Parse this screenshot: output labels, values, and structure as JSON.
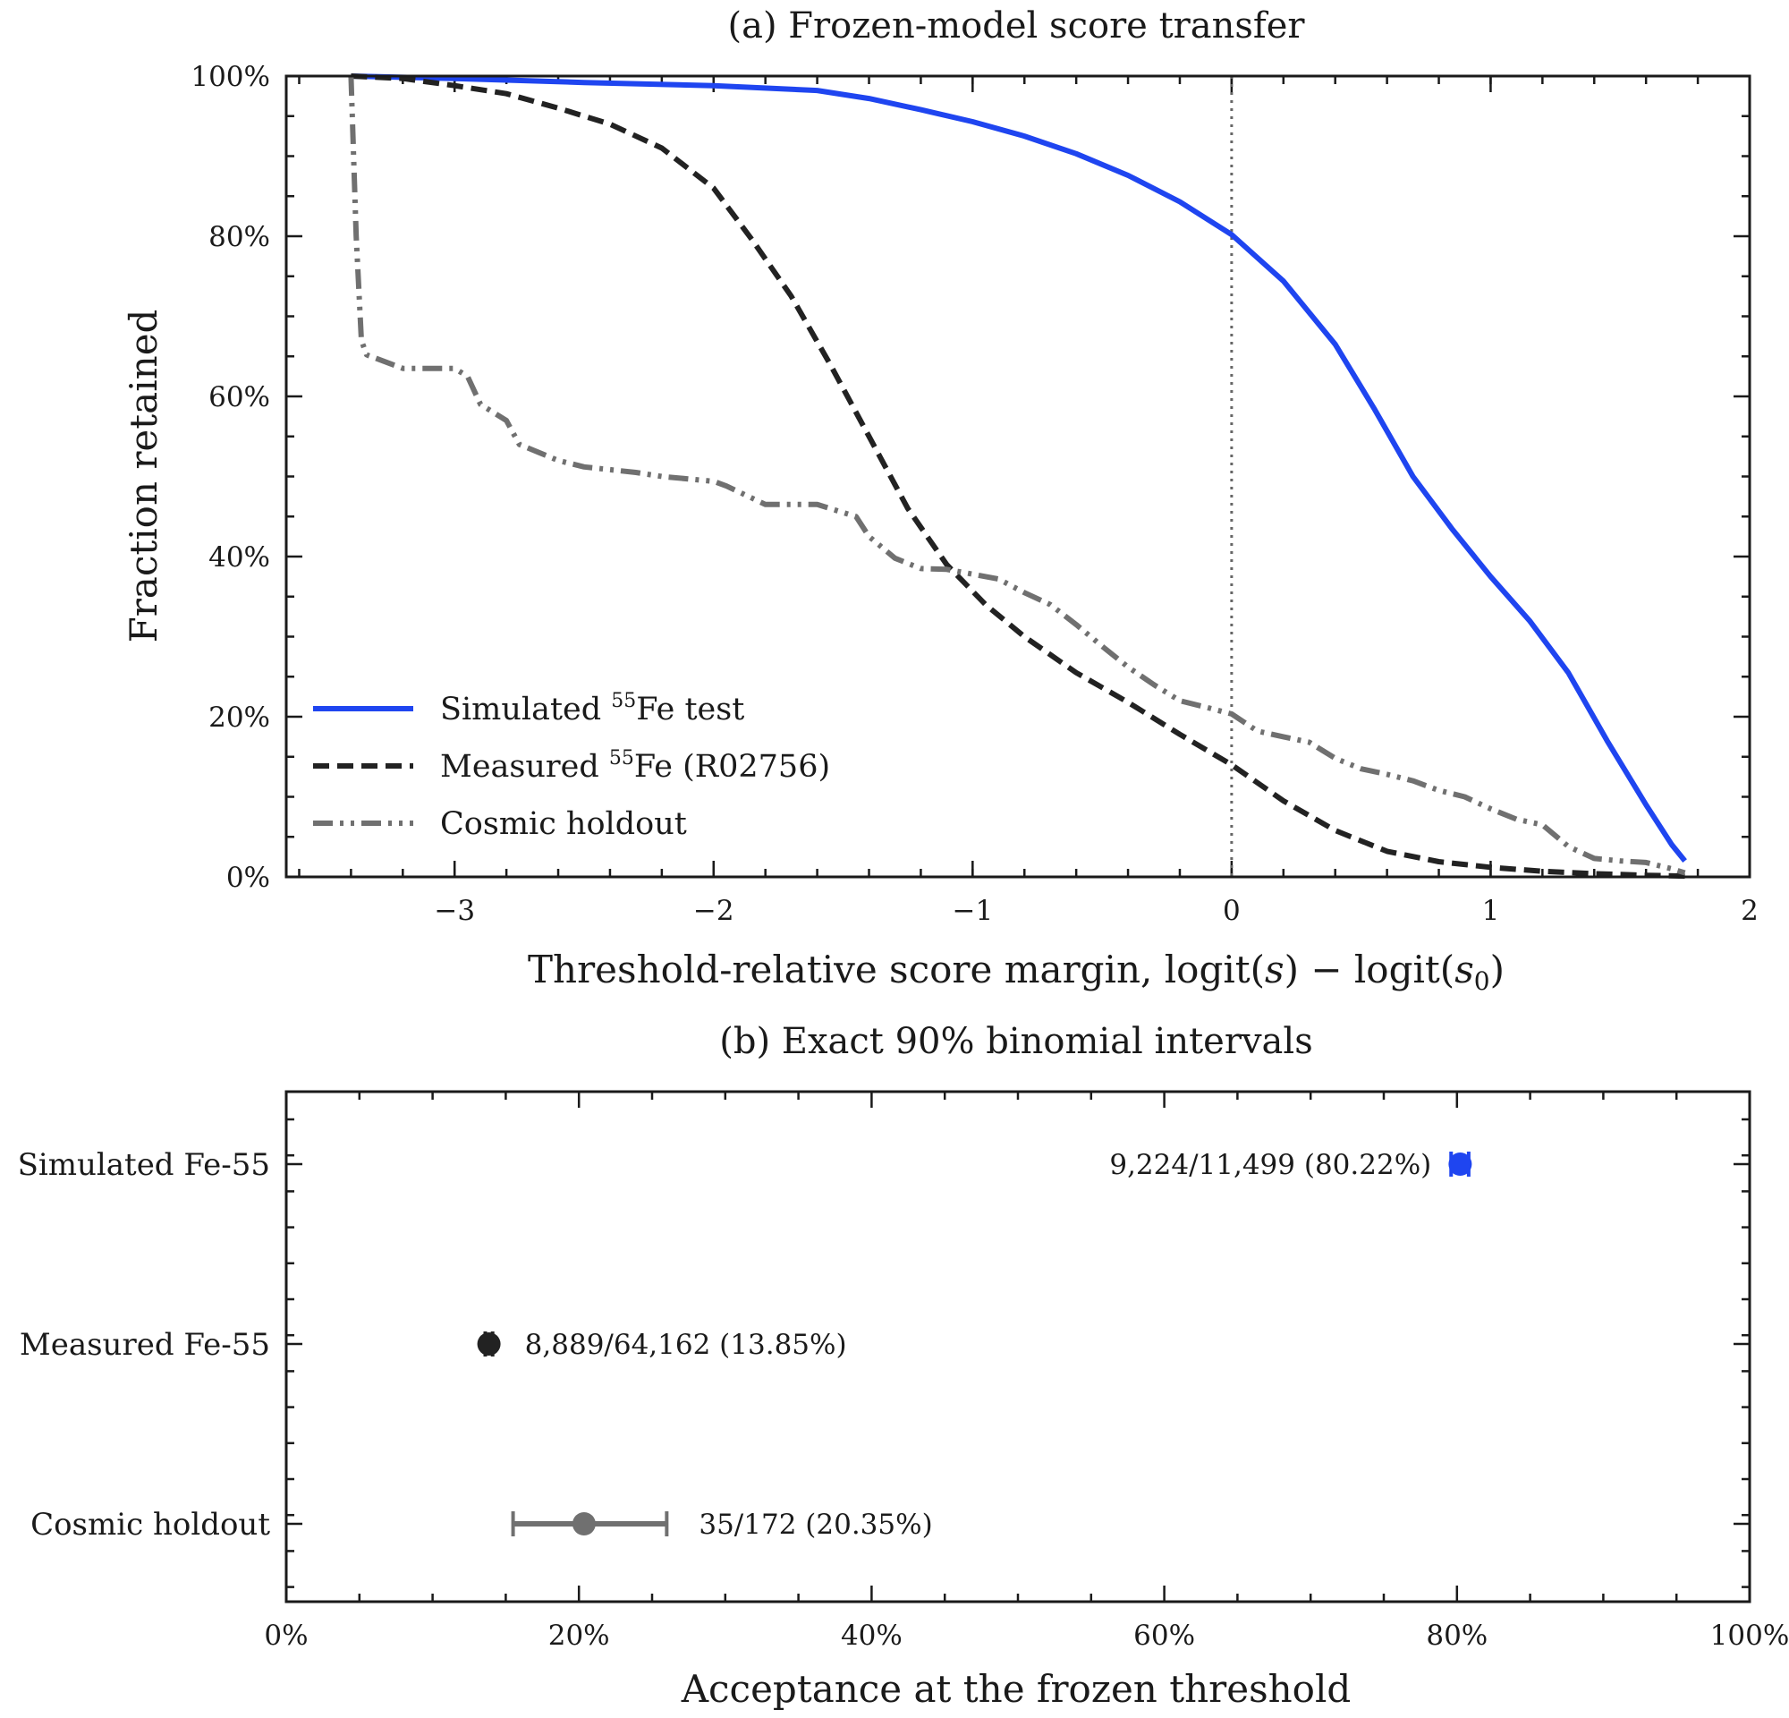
{
  "chart_data": [
    {
      "type": "line",
      "title": "(a) Frozen-model score transfer",
      "xlabel": "Threshold-relative score margin, logit(s) − logit(s₀)",
      "ylabel": "Fraction retained",
      "xlim": [
        -3.65,
        2.0
      ],
      "ylim": [
        0,
        100
      ],
      "x_ticks": [
        -3,
        -2,
        -1,
        0,
        1,
        2
      ],
      "x_tick_labels": [
        "−3",
        "−2",
        "−1",
        "0",
        "1",
        "2"
      ],
      "y_ticks": [
        0,
        20,
        40,
        60,
        80,
        100
      ],
      "y_tick_labels": [
        "0%",
        "20%",
        "40%",
        "60%",
        "80%",
        "100%"
      ],
      "reference_line": {
        "x": 0,
        "style": "dotted",
        "color": "#666666"
      },
      "legend": {
        "placement": "lower-left"
      },
      "series": [
        {
          "name": "Simulated ⁵⁵Fe test",
          "legend_parts": [
            "Simulated ",
            "55",
            "Fe test"
          ],
          "color": "#1f45f0",
          "style": "solid",
          "x": [
            -3.4,
            -3.0,
            -2.5,
            -2.0,
            -1.6,
            -1.4,
            -1.2,
            -1.0,
            -0.8,
            -0.6,
            -0.4,
            -0.2,
            0.0,
            0.2,
            0.4,
            0.55,
            0.7,
            0.85,
            1.0,
            1.15,
            1.3,
            1.45,
            1.6,
            1.7,
            1.75
          ],
          "y": [
            100,
            99.7,
            99.2,
            98.8,
            98.2,
            97.2,
            95.8,
            94.3,
            92.5,
            90.3,
            87.6,
            84.3,
            80.2,
            74.4,
            66.5,
            58.5,
            50.0,
            43.5,
            37.5,
            32.0,
            25.5,
            17.0,
            9.0,
            4.0,
            2.0
          ]
        },
        {
          "name": "Measured ⁵⁵Fe (R02756)",
          "legend_parts": [
            "Measured ",
            "55",
            "Fe (R02756)"
          ],
          "color": "#222222",
          "style": "dashed",
          "x": [
            -3.4,
            -3.2,
            -3.0,
            -2.8,
            -2.6,
            -2.4,
            -2.2,
            -2.0,
            -1.85,
            -1.7,
            -1.55,
            -1.4,
            -1.25,
            -1.1,
            -0.95,
            -0.8,
            -0.6,
            -0.4,
            -0.2,
            0.0,
            0.2,
            0.4,
            0.6,
            0.8,
            1.0,
            1.2,
            1.4,
            1.6,
            1.75
          ],
          "y": [
            100,
            99.7,
            98.8,
            97.8,
            96.0,
            94.0,
            91.0,
            86.0,
            79.5,
            72.5,
            64.0,
            55.0,
            46.0,
            39.0,
            34.0,
            30.0,
            25.5,
            21.8,
            17.8,
            14.0,
            9.5,
            5.8,
            3.2,
            1.9,
            1.2,
            0.7,
            0.4,
            0.2,
            0.1
          ]
        },
        {
          "name": "Cosmic holdout",
          "legend_parts": [
            "Cosmic holdout",
            "",
            ""
          ],
          "color": "#707070",
          "style": "dashdotdot",
          "x": [
            -3.4,
            -3.38,
            -3.36,
            -3.34,
            -3.2,
            -3.0,
            -2.95,
            -2.9,
            -2.8,
            -2.75,
            -2.6,
            -2.5,
            -2.3,
            -2.2,
            -2.0,
            -1.95,
            -1.8,
            -1.75,
            -1.6,
            -1.45,
            -1.4,
            -1.3,
            -1.2,
            -1.1,
            -0.9,
            -0.8,
            -0.7,
            -0.6,
            -0.5,
            -0.4,
            -0.3,
            -0.2,
            -0.1,
            0.0,
            0.1,
            0.2,
            0.3,
            0.4,
            0.5,
            0.6,
            0.7,
            0.8,
            0.9,
            1.0,
            1.1,
            1.2,
            1.3,
            1.4,
            1.5,
            1.6,
            1.7,
            1.75
          ],
          "y": [
            100,
            80,
            67,
            65.2,
            63.5,
            63.5,
            62.5,
            59.0,
            57.0,
            54.0,
            52.0,
            51.2,
            50.5,
            50.0,
            49.4,
            48.8,
            46.5,
            46.5,
            46.5,
            45.0,
            42.5,
            39.8,
            38.5,
            38.4,
            37.2,
            35.5,
            34.0,
            31.5,
            28.8,
            26.2,
            24.0,
            22.0,
            21.2,
            20.35,
            18.2,
            17.5,
            16.8,
            14.8,
            13.5,
            12.8,
            12.0,
            10.8,
            10.0,
            8.5,
            7.2,
            6.5,
            3.8,
            2.3,
            2.0,
            1.8,
            1.0,
            0.5
          ]
        }
      ]
    },
    {
      "type": "scatter",
      "subtype": "horizontal-errorbar",
      "title": "(b) Exact 90% binomial intervals",
      "xlabel": "Acceptance at the frozen threshold",
      "ylabel": "",
      "xlim": [
        0,
        100
      ],
      "x_ticks": [
        0,
        20,
        40,
        60,
        80,
        100
      ],
      "x_tick_labels": [
        "0%",
        "20%",
        "40%",
        "60%",
        "80%",
        "100%"
      ],
      "categories": [
        "Simulated Fe-55",
        "Measured Fe-55",
        "Cosmic holdout"
      ],
      "points": [
        {
          "category": "Simulated Fe-55",
          "value": 80.22,
          "lower": 79.6,
          "upper": 80.8,
          "color": "#1f45f0",
          "annotation": "9,224/11,499 (80.22%)",
          "annotation_side": "left"
        },
        {
          "category": "Measured Fe-55",
          "value": 13.85,
          "lower": 13.6,
          "upper": 14.1,
          "color": "#222222",
          "annotation": "8,889/64,162 (13.85%)",
          "annotation_side": "right"
        },
        {
          "category": "Cosmic holdout",
          "value": 20.35,
          "lower": 15.5,
          "upper": 26.0,
          "color": "#707070",
          "annotation": "35/172 (20.35%)",
          "annotation_side": "right"
        }
      ]
    }
  ]
}
